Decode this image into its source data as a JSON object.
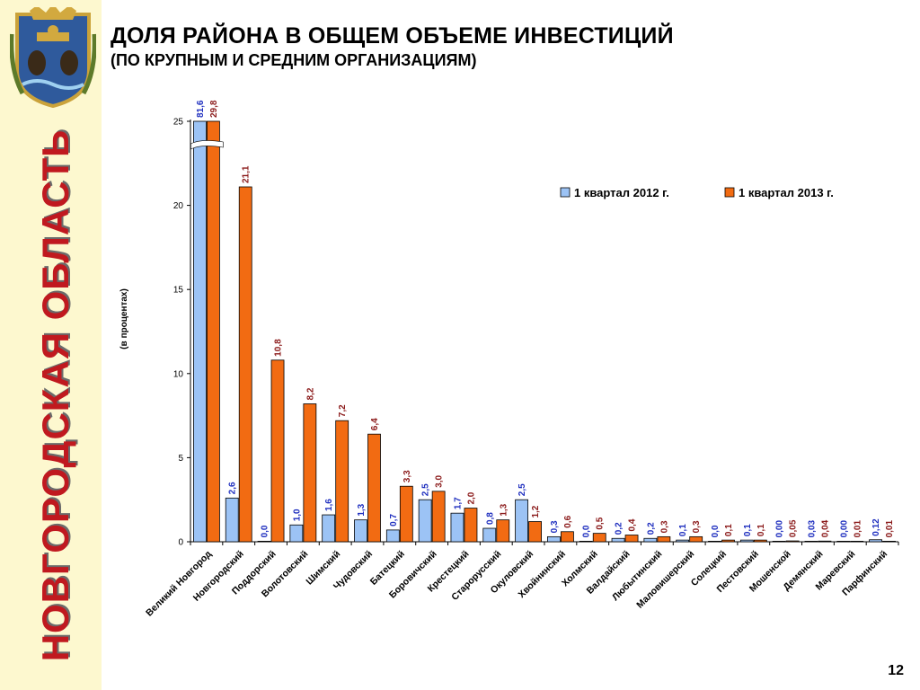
{
  "sidebar": {
    "region_name": "НОВГОРОДСКАЯ ОБЛАСТЬ",
    "emblem_icon": "coat-of-arms-icon"
  },
  "header": {
    "title": "ДОЛЯ РАЙОНА В ОБЩЕМ ОБЪЕМЕ ИНВЕСТИЦИЙ",
    "subtitle": "(ПО КРУПНЫМ И СРЕДНИМ ОРГАНИЗАЦИЯМ)"
  },
  "page_number": "12",
  "colors": {
    "series_2012": "#9cc3f5",
    "series_2013": "#f26b12",
    "label_2012": "#1f2fbf",
    "label_2013": "#8b1a1a",
    "sidebar_bg": "#fdf8cf",
    "region_text": "#c0191f"
  },
  "chart_data": {
    "type": "bar",
    "ylabel": "(в процентах)",
    "ylim": [
      0,
      25
    ],
    "yticks": [
      "0",
      "5",
      "10",
      "15",
      "20",
      "25"
    ],
    "axis_break": true,
    "legend_position": "top-right",
    "categories": [
      "Великий Новгород",
      "Новгородский",
      "Поддорский",
      "Волотовский",
      "Шимский",
      "Чудовский",
      "Батецкий",
      "Боровичский",
      "Крестецкий",
      "Старорусский",
      "Окуловский",
      "Хвойнинский",
      "Холмский",
      "Валдайский",
      "Любытинский",
      "Маловишерский",
      "Солецкий",
      "Пестовский",
      "Мошенской",
      "Демянский",
      "Маревский",
      "Парфинский"
    ],
    "series": [
      {
        "name": "1 квартал 2012 г.",
        "values": [
          81.6,
          2.6,
          0.0,
          1.0,
          1.6,
          1.3,
          0.7,
          2.5,
          1.7,
          0.8,
          2.5,
          0.3,
          0.0,
          0.2,
          0.2,
          0.1,
          0.0,
          0.1,
          0.0,
          0.03,
          0.0,
          0.12
        ],
        "labels": [
          "81,6",
          "2,6",
          "0,0",
          "1,0",
          "1,6",
          "1,3",
          "0,7",
          "2,5",
          "1,7",
          "0,8",
          "2,5",
          "0,3",
          "0,0",
          "0,2",
          "0,2",
          "0,1",
          "0,0",
          "0,1",
          "0,00",
          "0,03",
          "0,00",
          "0,12"
        ]
      },
      {
        "name": "1 квартал 2013 г.",
        "values": [
          29.8,
          21.1,
          10.8,
          8.2,
          7.2,
          6.4,
          3.3,
          3.0,
          2.0,
          1.3,
          1.2,
          0.6,
          0.5,
          0.4,
          0.3,
          0.3,
          0.1,
          0.1,
          0.05,
          0.04,
          0.01,
          0.01
        ],
        "labels": [
          "29,8",
          "21,1",
          "10,8",
          "8,2",
          "7,2",
          "6,4",
          "3,3",
          "3,0",
          "2,0",
          "1,3",
          "1,2",
          "0,6",
          "0,5",
          "0,4",
          "0,3",
          "0,3",
          "0,1",
          "0,1",
          "0,05",
          "0,04",
          "0,01",
          "0,01"
        ]
      }
    ]
  }
}
